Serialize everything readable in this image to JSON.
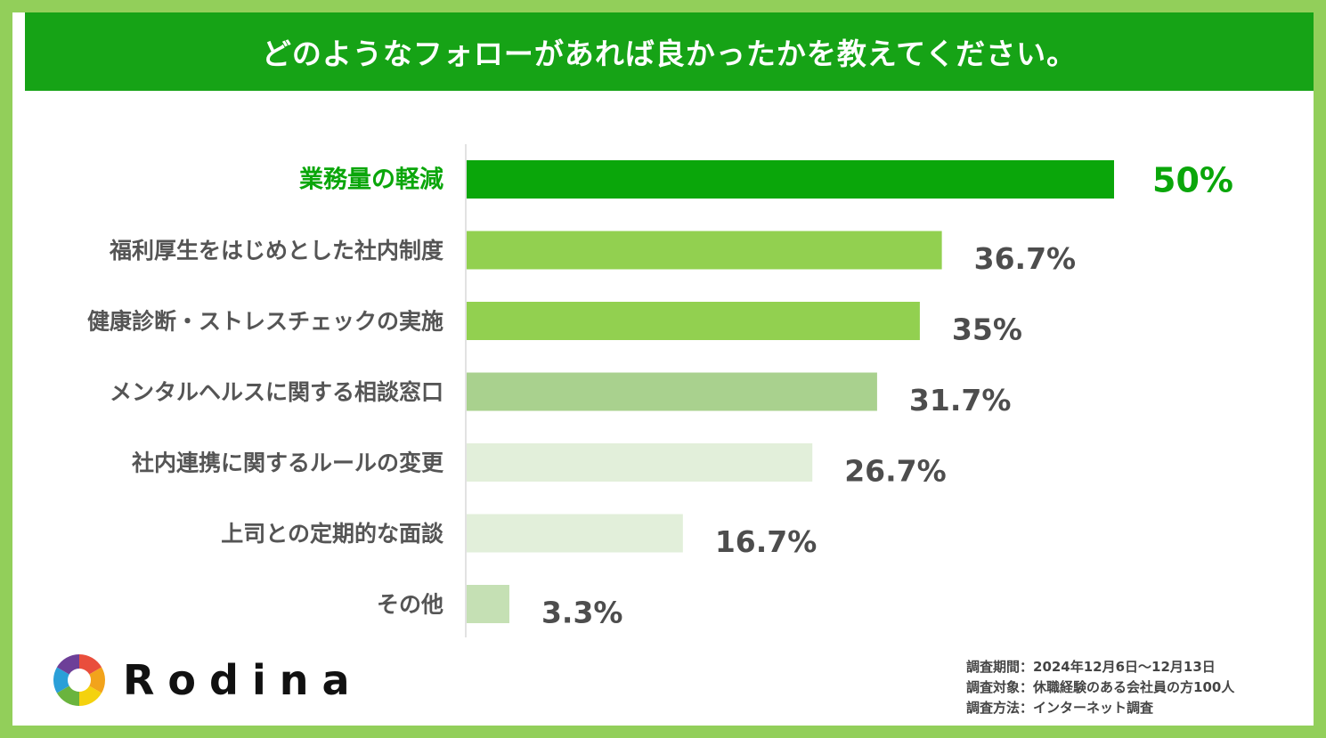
{
  "title": "どのようなフォローがあれば良かったかを教えてください。",
  "colors": {
    "frame": "#92cf5a",
    "title_bg": "#16a316",
    "highlight": "#0aa60a",
    "bar_green": "#92d050",
    "bar_mid": "#a9d18e",
    "bar_pale": "#e2efda",
    "bar_light": "#c5e0b4",
    "label_gray": "#555555"
  },
  "chart_data": {
    "type": "bar",
    "orientation": "horizontal",
    "categories": [
      "業務量の軽減",
      "福利厚生をはじめとした社内制度",
      "健康診断・ストレスチェックの実施",
      "メンタルヘルスに関する相談窓口",
      "社内連携に関するルールの変更",
      "上司との定期的な面談",
      "その他"
    ],
    "values": [
      50,
      36.7,
      35,
      31.7,
      26.7,
      16.7,
      3.3
    ],
    "value_labels": [
      "50%",
      "36.7%",
      "35%",
      "31.7%",
      "26.7%",
      "16.7%",
      "3.3%"
    ],
    "bar_colors": [
      "#0aa60a",
      "#92d050",
      "#92d050",
      "#a9d18e",
      "#e2efda",
      "#e2efda",
      "#c5e0b4"
    ],
    "highlight_index": 0,
    "xlim": [
      0,
      50
    ],
    "grid": false,
    "legend": "none"
  },
  "logo": {
    "text": "Rodina"
  },
  "survey": {
    "lines": [
      "調査期間：2024年12月6日〜12月13日",
      "調査対象：休職経験のある会社員の方100人",
      "調査方法：インターネット調査"
    ]
  }
}
